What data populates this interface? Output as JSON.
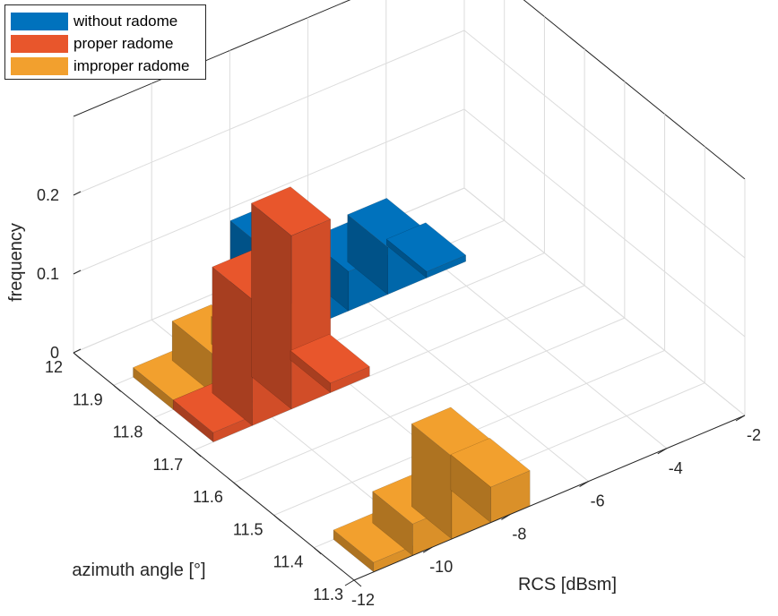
{
  "chart_data": {
    "type": "bar3",
    "ylabel_text": "frequency",
    "xlabel": "RCS [dBsm]",
    "azimuth_label": "azimuth angle [°]",
    "z_ticks": [
      "0",
      "0.1",
      "0.2"
    ],
    "z_tick_values": [
      0,
      0.1,
      0.2
    ],
    "x_ticks": [
      "-12",
      "-10",
      "-8",
      "-6",
      "-4",
      "-2"
    ],
    "x_tick_values": [
      -12,
      -10,
      -8,
      -6,
      -4,
      -2
    ],
    "y_ticks": [
      "11.3",
      "11.4",
      "11.5",
      "11.6",
      "11.7",
      "11.8",
      "11.9",
      "12"
    ],
    "y_tick_values": [
      11.3,
      11.4,
      11.5,
      11.6,
      11.7,
      11.8,
      11.9,
      12
    ],
    "xlim": [
      -12,
      -2
    ],
    "ylim": [
      11.3,
      12
    ],
    "zlim": [
      0,
      0.3
    ],
    "legend": [
      "without radome",
      "proper radome",
      "improper radome"
    ],
    "colors": {
      "without radome": "#0072BD",
      "proper radome": "#E8562C",
      "improper radome": "#F2A02E"
    },
    "series": [
      {
        "name": "without radome",
        "bars": [
          {
            "x": -9.0,
            "y": 11.9,
            "h": 0.012
          },
          {
            "x": -8.0,
            "y": 11.9,
            "h": 0.115
          },
          {
            "x": -7.0,
            "y": 11.9,
            "h": 0.08
          },
          {
            "x": -6.0,
            "y": 11.9,
            "h": 0.05
          },
          {
            "x": -5.0,
            "y": 11.9,
            "h": 0.06
          },
          {
            "x": -4.0,
            "y": 11.9,
            "h": 0.008
          }
        ]
      },
      {
        "name": "proper radome",
        "bars": [
          {
            "x": -11.0,
            "y": 11.75,
            "h": 0.012
          },
          {
            "x": -10.0,
            "y": 11.75,
            "h": 0.16
          },
          {
            "x": -9.0,
            "y": 11.75,
            "h": 0.22
          },
          {
            "x": -8.0,
            "y": 11.75,
            "h": 0.012
          }
        ]
      },
      {
        "name": "improper radome",
        "bars": [
          {
            "x": -11.0,
            "y": 11.35,
            "h": 0.012
          },
          {
            "x": -10.0,
            "y": 11.35,
            "h": 0.04
          },
          {
            "x": -9.0,
            "y": 11.35,
            "h": 0.105
          },
          {
            "x": -8.0,
            "y": 11.35,
            "h": 0.045
          },
          {
            "x": -11.0,
            "y": 11.85,
            "h": 0.012
          },
          {
            "x": -10.0,
            "y": 11.85,
            "h": 0.05
          },
          {
            "x": -9.0,
            "y": 11.85,
            "h": 0.035
          },
          {
            "x": -8.0,
            "y": 11.85,
            "h": 0.012
          }
        ]
      }
    ]
  }
}
